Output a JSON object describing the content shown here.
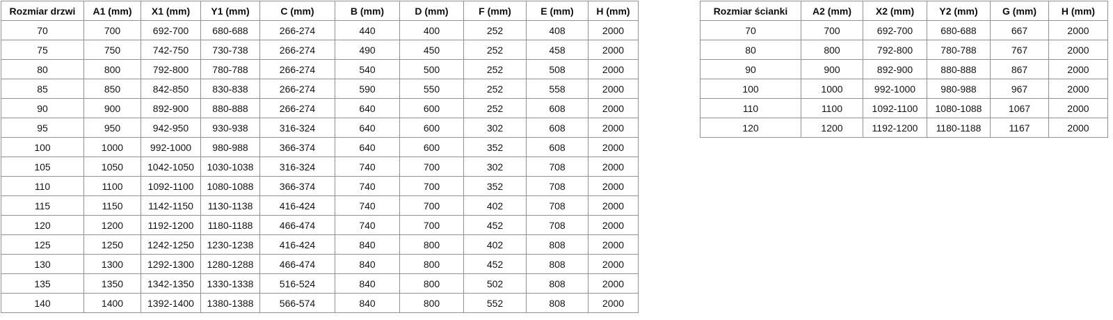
{
  "page": {
    "background": "#ffffff",
    "text_color": "#121212",
    "border_color": "#919191"
  },
  "tables": {
    "doors": {
      "title": "Rozmiar drzwi",
      "headers": [
        "Rozmiar drzwi",
        "A1 (mm)",
        "X1 (mm)",
        "Y1 (mm)",
        "C (mm)",
        "B (mm)",
        "D (mm)",
        "F (mm)",
        "E (mm)",
        "H (mm)"
      ],
      "rows": [
        [
          "70",
          "700",
          "692-700",
          "680-688",
          "266-274",
          "440",
          "400",
          "252",
          "408",
          "2000"
        ],
        [
          "75",
          "750",
          "742-750",
          "730-738",
          "266-274",
          "490",
          "450",
          "252",
          "458",
          "2000"
        ],
        [
          "80",
          "800",
          "792-800",
          "780-788",
          "266-274",
          "540",
          "500",
          "252",
          "508",
          "2000"
        ],
        [
          "85",
          "850",
          "842-850",
          "830-838",
          "266-274",
          "590",
          "550",
          "252",
          "558",
          "2000"
        ],
        [
          "90",
          "900",
          "892-900",
          "880-888",
          "266-274",
          "640",
          "600",
          "252",
          "608",
          "2000"
        ],
        [
          "95",
          "950",
          "942-950",
          "930-938",
          "316-324",
          "640",
          "600",
          "302",
          "608",
          "2000"
        ],
        [
          "100",
          "1000",
          "992-1000",
          "980-988",
          "366-374",
          "640",
          "600",
          "352",
          "608",
          "2000"
        ],
        [
          "105",
          "1050",
          "1042-1050",
          "1030-1038",
          "316-324",
          "740",
          "700",
          "302",
          "708",
          "2000"
        ],
        [
          "110",
          "1100",
          "1092-1100",
          "1080-1088",
          "366-374",
          "740",
          "700",
          "352",
          "708",
          "2000"
        ],
        [
          "115",
          "1150",
          "1142-1150",
          "1130-1138",
          "416-424",
          "740",
          "700",
          "402",
          "708",
          "2000"
        ],
        [
          "120",
          "1200",
          "1192-1200",
          "1180-1188",
          "466-474",
          "740",
          "700",
          "452",
          "708",
          "2000"
        ],
        [
          "125",
          "1250",
          "1242-1250",
          "1230-1238",
          "416-424",
          "840",
          "800",
          "402",
          "808",
          "2000"
        ],
        [
          "130",
          "1300",
          "1292-1300",
          "1280-1288",
          "466-474",
          "840",
          "800",
          "452",
          "808",
          "2000"
        ],
        [
          "135",
          "1350",
          "1342-1350",
          "1330-1338",
          "516-524",
          "840",
          "800",
          "502",
          "808",
          "2000"
        ],
        [
          "140",
          "1400",
          "1392-1400",
          "1380-1388",
          "566-574",
          "840",
          "800",
          "552",
          "808",
          "2000"
        ]
      ]
    },
    "walls": {
      "title": "Rozmiar ścianki",
      "headers": [
        "Rozmiar ścianki",
        "A2 (mm)",
        "X2 (mm)",
        "Y2 (mm)",
        "G (mm)",
        "H (mm)"
      ],
      "rows": [
        [
          "70",
          "700",
          "692-700",
          "680-688",
          "667",
          "2000"
        ],
        [
          "80",
          "800",
          "792-800",
          "780-788",
          "767",
          "2000"
        ],
        [
          "90",
          "900",
          "892-900",
          "880-888",
          "867",
          "2000"
        ],
        [
          "100",
          "1000",
          "992-1000",
          "980-988",
          "967",
          "2000"
        ],
        [
          "110",
          "1100",
          "1092-1100",
          "1080-1088",
          "1067",
          "2000"
        ],
        [
          "120",
          "1200",
          "1192-1200",
          "1180-1188",
          "1167",
          "2000"
        ]
      ]
    }
  }
}
